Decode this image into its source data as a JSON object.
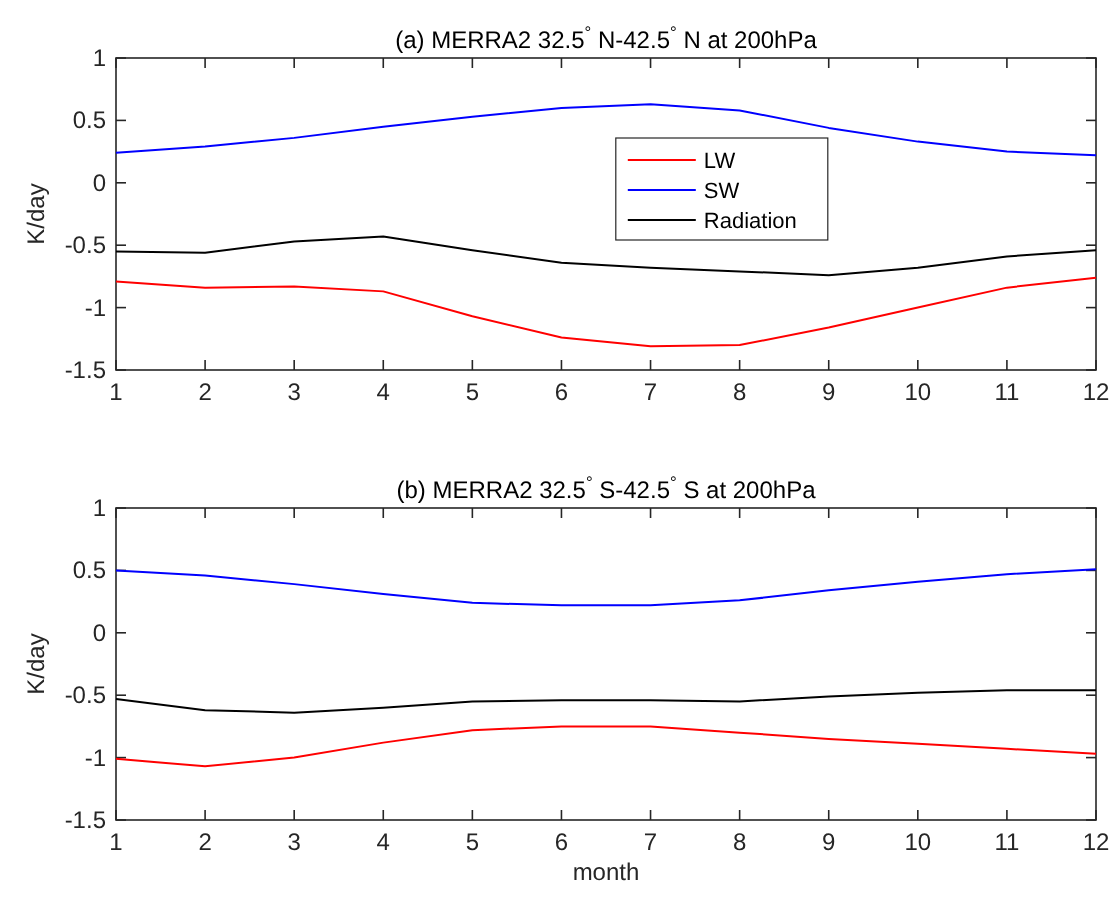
{
  "chart_data": [
    {
      "type": "line",
      "title": "(a) MERRA2 32.5$^{°}$ N-42.5$^{°}$ N at 200hPa",
      "ylabel": "K/day",
      "x": [
        1,
        2,
        3,
        4,
        5,
        6,
        7,
        8,
        9,
        10,
        11,
        12
      ],
      "xlim": [
        1,
        12
      ],
      "xticks": [
        1,
        2,
        3,
        4,
        5,
        6,
        7,
        8,
        9,
        10,
        11,
        12
      ],
      "ylim": [
        -1.5,
        1
      ],
      "yticks": [
        -1.5,
        -1,
        -0.5,
        0,
        0.5,
        1
      ],
      "legend": "top",
      "line_style": "solid",
      "series": [
        {
          "name": "LW",
          "color": "#ff0000",
          "values": [
            -0.79,
            -0.84,
            -0.83,
            -0.87,
            -1.07,
            -1.24,
            -1.31,
            -1.3,
            -1.16,
            -1.0,
            -0.84,
            -0.76
          ]
        },
        {
          "name": "SW",
          "color": "#0000ff",
          "values": [
            0.24,
            0.29,
            0.36,
            0.45,
            0.53,
            0.6,
            0.63,
            0.58,
            0.44,
            0.33,
            0.25,
            0.22
          ]
        },
        {
          "name": "Radiation",
          "color": "#000000",
          "values": [
            -0.55,
            -0.56,
            -0.47,
            -0.43,
            -0.54,
            -0.64,
            -0.68,
            -0.71,
            -0.74,
            -0.68,
            -0.59,
            -0.54
          ]
        }
      ]
    },
    {
      "type": "line",
      "title": "(b) MERRA2 32.5$^{°}$ S-42.5$^{°}$ S at 200hPa",
      "xlabel": "month",
      "ylabel": "K/day",
      "x": [
        1,
        2,
        3,
        4,
        5,
        6,
        7,
        8,
        9,
        10,
        11,
        12
      ],
      "xlim": [
        1,
        12
      ],
      "xticks": [
        1,
        2,
        3,
        4,
        5,
        6,
        7,
        8,
        9,
        10,
        11,
        12
      ],
      "ylim": [
        -1.5,
        1
      ],
      "yticks": [
        -1.5,
        -1,
        -0.5,
        0,
        0.5,
        1
      ],
      "line_style": "solid",
      "series": [
        {
          "color": "#ff0000",
          "values": [
            -1.01,
            -1.07,
            -1.0,
            -0.88,
            -0.78,
            -0.75,
            -0.75,
            -0.8,
            -0.85,
            -0.89,
            -0.93,
            -0.97
          ]
        },
        {
          "color": "#0000ff",
          "values": [
            0.5,
            0.46,
            0.39,
            0.31,
            0.24,
            0.22,
            0.22,
            0.26,
            0.34,
            0.41,
            0.47,
            0.51
          ]
        },
        {
          "color": "#000000",
          "values": [
            -0.53,
            -0.62,
            -0.64,
            -0.6,
            -0.55,
            -0.54,
            -0.54,
            -0.55,
            -0.51,
            -0.48,
            -0.46,
            -0.46
          ]
        }
      ]
    }
  ]
}
